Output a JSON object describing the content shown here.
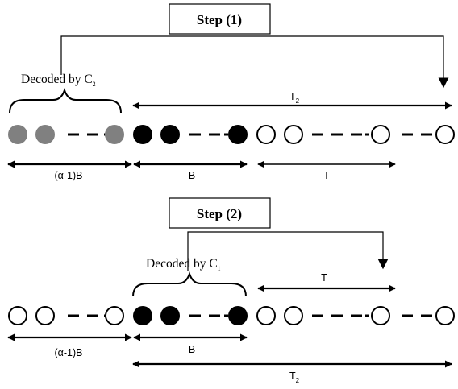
{
  "colors": {
    "gray": "#808080",
    "black": "#000000",
    "white": "#ffffff"
  },
  "step1": {
    "label": "Step (1)",
    "decoded": {
      "text": "Decoded by C",
      "subscript": "2"
    },
    "labels": {
      "t2": {
        "text": "T",
        "subscript": "2"
      },
      "alpha_b": "(α-1)B",
      "b": "B",
      "t": "T"
    },
    "rows": [
      {
        "type": "gray-filled"
      },
      {
        "type": "gray-filled"
      },
      {
        "type": "gray-filled"
      },
      {
        "type": "black-filled"
      },
      {
        "type": "black-filled"
      },
      {
        "type": "black-filled"
      },
      {
        "type": "hollow"
      },
      {
        "type": "hollow"
      },
      {
        "type": "hollow"
      },
      {
        "type": "hollow"
      }
    ]
  },
  "step2": {
    "label": "Step (2)",
    "decoded": {
      "text": "Decoded by C",
      "subscript": "1"
    },
    "labels": {
      "t": "T",
      "alpha_b": "(α-1)B",
      "b": "B",
      "t2": {
        "text": "T",
        "subscript": "2"
      }
    },
    "rows": [
      {
        "type": "hollow"
      },
      {
        "type": "hollow"
      },
      {
        "type": "hollow"
      },
      {
        "type": "black-filled"
      },
      {
        "type": "black-filled"
      },
      {
        "type": "black-filled"
      },
      {
        "type": "hollow"
      },
      {
        "type": "hollow"
      },
      {
        "type": "hollow"
      },
      {
        "type": "hollow"
      }
    ]
  }
}
